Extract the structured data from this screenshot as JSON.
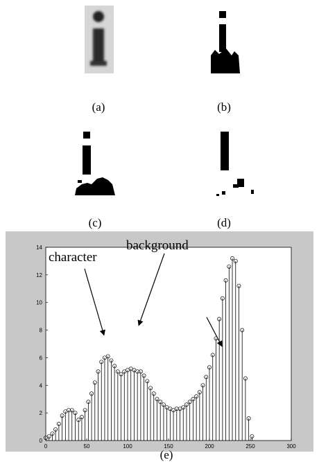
{
  "panels": [
    "(a)",
    "(b)",
    "(c)",
    "(d)",
    "(e)"
  ],
  "chart_data": {
    "type": "stem",
    "x": [
      0,
      4,
      8,
      12,
      16,
      20,
      24,
      28,
      32,
      36,
      40,
      44,
      48,
      52,
      56,
      60,
      64,
      68,
      72,
      76,
      80,
      84,
      88,
      92,
      96,
      100,
      104,
      108,
      112,
      116,
      120,
      124,
      128,
      132,
      136,
      140,
      144,
      148,
      152,
      156,
      160,
      164,
      168,
      172,
      176,
      180,
      184,
      188,
      192,
      196,
      200,
      204,
      208,
      212,
      216,
      220,
      224,
      228,
      232,
      236,
      240,
      244,
      248,
      252
    ],
    "values": [
      0.2,
      0.3,
      0.5,
      0.8,
      1.2,
      1.8,
      2.1,
      2.2,
      2.2,
      2.0,
      1.5,
      1.7,
      2.2,
      2.8,
      3.4,
      4.2,
      5.0,
      5.7,
      6.0,
      6.1,
      5.8,
      5.4,
      5.0,
      4.8,
      5.0,
      5.1,
      5.2,
      5.1,
      5.0,
      5.0,
      4.7,
      4.3,
      3.8,
      3.4,
      3.0,
      2.8,
      2.6,
      2.4,
      2.3,
      2.2,
      2.3,
      2.3,
      2.4,
      2.6,
      2.8,
      3.0,
      3.2,
      3.5,
      4.0,
      4.6,
      5.3,
      6.2,
      7.4,
      8.8,
      10.3,
      11.6,
      12.6,
      13.2,
      13.0,
      11.2,
      8.0,
      4.5,
      1.6,
      0.3
    ],
    "color": "#000000",
    "xlim": [
      0,
      300
    ],
    "xticks": [
      0,
      50,
      100,
      150,
      200,
      250,
      300
    ],
    "ylim": [
      0,
      14
    ],
    "yticks": [
      0,
      2,
      4,
      6,
      8,
      10,
      12,
      14
    ],
    "annotations": [
      "character",
      "background"
    ]
  }
}
